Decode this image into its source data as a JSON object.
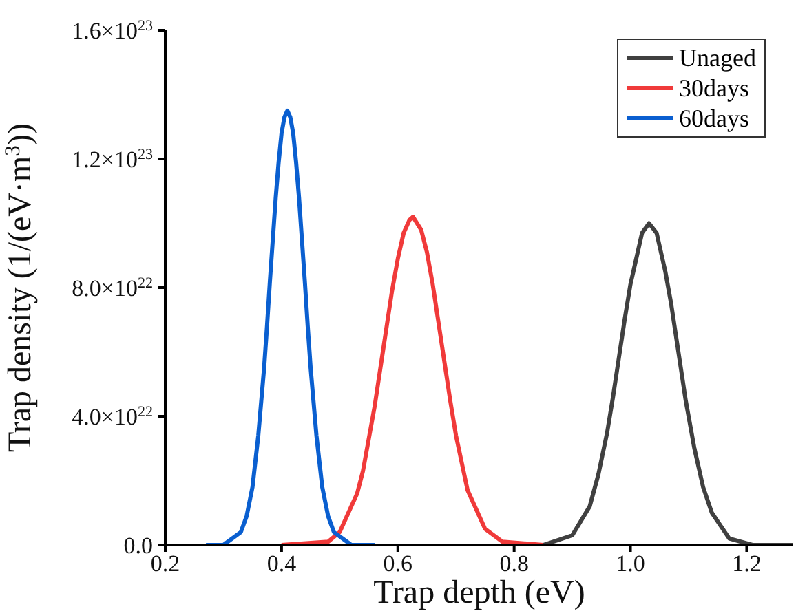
{
  "chart_data": {
    "type": "line",
    "xlabel": "Trap depth (eV)",
    "ylabel": "Trap density (1/(eV·m$^{3}$))",
    "xlim": [
      0.2,
      1.28
    ],
    "xticks": [
      0.2,
      {
        "value": 0.4,
        "label": "0.4"
      },
      {
        "value": 0.6,
        "label": "0.6"
      },
      {
        "value": 0.8,
        "label": "0.8"
      },
      {
        "value": 1.0,
        "label": "1.0"
      },
      {
        "value": 1.2,
        "label": "1.2"
      }
    ],
    "ylim": [
      0,
      1.6e+23
    ],
    "yticks": [
      {
        "value": 0,
        "label": "0.0"
      },
      {
        "value": 4e+22,
        "label": "4.0×10$^{22}$"
      },
      {
        "value": 8e+22,
        "label": "8.0×10$^{22}$"
      },
      {
        "value": 1.2e+23,
        "label": "1.2×10$^{23}$"
      },
      {
        "value": 1.6e+23,
        "label": "1.6×10$^{23}$"
      }
    ],
    "legend": "top right",
    "marker": "none",
    "line_style": "solid",
    "series": [
      {
        "name": "Unaged",
        "color": "#404040",
        "x": [
          0.85,
          0.9,
          0.93,
          0.945,
          0.96,
          0.97,
          0.98,
          0.99,
          1.0,
          1.02,
          1.032,
          1.045,
          1.06,
          1.07,
          1.08,
          1.095,
          1.11,
          1.125,
          1.14,
          1.17,
          1.21,
          1.28
        ],
        "values": [
          0,
          3e+21,
          1.2e+22,
          2.2e+22,
          3.5e+22,
          4.6e+22,
          5.8e+22,
          7e+22,
          8.1e+22,
          9.7e+22,
          1e+23,
          9.7e+22,
          8.5e+22,
          7.5e+22,
          6.3e+22,
          4.5e+22,
          3e+22,
          1.8e+22,
          1e+22,
          2e+21,
          0,
          0
        ]
      },
      {
        "name": "30days",
        "color": "#f03a3a",
        "x": [
          0.4,
          0.48,
          0.5,
          0.53,
          0.54,
          0.56,
          0.58,
          0.59,
          0.6,
          0.61,
          0.62,
          0.626,
          0.64,
          0.65,
          0.66,
          0.67,
          0.69,
          0.7,
          0.72,
          0.75,
          0.78,
          0.85
        ],
        "values": [
          0,
          1e+21,
          4e+21,
          1.6e+22,
          2.3e+22,
          4.3e+22,
          6.7e+22,
          7.9e+22,
          8.9e+22,
          9.7e+22,
          1.01e+23,
          1.02e+23,
          9.8e+22,
          9.1e+22,
          8.1e+22,
          6.9e+22,
          4.5e+22,
          3.4e+22,
          1.7e+22,
          5e+21,
          1e+21,
          0
        ]
      },
      {
        "name": "60days",
        "color": "#0a5fd0",
        "x": [
          0.27,
          0.3,
          0.33,
          0.34,
          0.35,
          0.36,
          0.37,
          0.375,
          0.38,
          0.385,
          0.39,
          0.395,
          0.4,
          0.405,
          0.41,
          0.415,
          0.42,
          0.425,
          0.43,
          0.435,
          0.44,
          0.445,
          0.45,
          0.46,
          0.47,
          0.48,
          0.49,
          0.52,
          0.56
        ],
        "values": [
          0,
          0,
          4e+21,
          9e+21,
          1.8e+22,
          3.4e+22,
          5.5e+22,
          6.8e+22,
          8.2e+22,
          9.5e+22,
          1.08e+23,
          1.19e+23,
          1.28e+23,
          1.33e+23,
          1.35e+23,
          1.33e+23,
          1.28e+23,
          1.19e+23,
          1.08e+23,
          9.5e+22,
          8.2e+22,
          6.8e+22,
          5.5e+22,
          3.4e+22,
          1.8e+22,
          9e+21,
          4e+21,
          0,
          0
        ]
      }
    ]
  }
}
